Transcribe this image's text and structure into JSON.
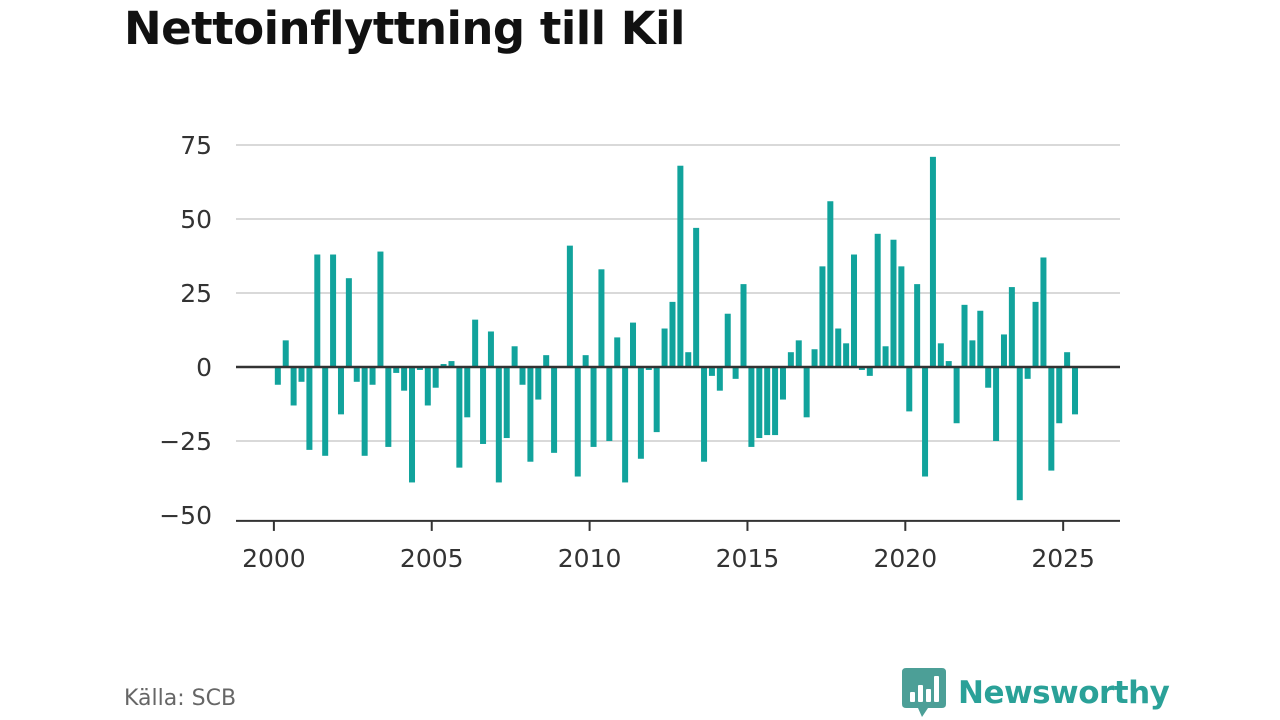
{
  "chart_data": {
    "type": "bar",
    "title": "Nettoinflyttning till Kil",
    "xlabel": "",
    "ylabel": "",
    "x_range": [
      1998.8,
      2026.8
    ],
    "ylim": [
      -52,
      80
    ],
    "y_ticks": [
      75,
      50,
      25,
      0,
      -25,
      -50
    ],
    "y_tick_labels": [
      "75",
      "50",
      "25",
      "0",
      "−25",
      "−50"
    ],
    "x_ticks": [
      2000,
      2005,
      2010,
      2015,
      2020,
      2025
    ],
    "x_tick_labels": [
      "2000",
      "2005",
      "2010",
      "2015",
      "2020",
      "2025"
    ],
    "grid": true,
    "legend": "none",
    "bar_color": "#11a39c",
    "series": [
      {
        "x": [
          2000.125,
          2000.375,
          2000.625,
          2000.875,
          2001.125,
          2001.375,
          2001.625,
          2001.875,
          2002.125,
          2002.375,
          2002.625,
          2002.875,
          2003.125,
          2003.375,
          2003.625,
          2003.875,
          2004.125,
          2004.375,
          2004.625,
          2004.875,
          2005.125,
          2005.375,
          2005.625,
          2005.875,
          2006.125,
          2006.375,
          2006.625,
          2006.875,
          2007.125,
          2007.375,
          2007.625,
          2007.875,
          2008.125,
          2008.375,
          2008.625,
          2008.875,
          2009.125,
          2009.375,
          2009.625,
          2009.875,
          2010.125,
          2010.375,
          2010.625,
          2010.875,
          2011.125,
          2011.375,
          2011.625,
          2011.875,
          2012.125,
          2012.375,
          2012.625,
          2012.875,
          2013.125,
          2013.375,
          2013.625,
          2013.875,
          2014.125,
          2014.375,
          2014.625,
          2014.875,
          2015.125,
          2015.375,
          2015.625,
          2015.875,
          2016.125,
          2016.375,
          2016.625,
          2016.875,
          2017.125,
          2017.375,
          2017.625,
          2017.875,
          2018.125,
          2018.375,
          2018.625,
          2018.875,
          2019.125,
          2019.375,
          2019.625,
          2019.875,
          2020.125,
          2020.375,
          2020.625,
          2020.875,
          2021.125,
          2021.375,
          2021.625,
          2021.875,
          2022.125,
          2022.375,
          2022.625,
          2022.875,
          2023.125,
          2023.375,
          2023.625,
          2023.875,
          2024.125,
          2024.375,
          2024.625,
          2024.875,
          2025.125,
          2025.375
        ],
        "values": [
          -6,
          9,
          -13,
          -5,
          -28,
          38,
          -30,
          38,
          -16,
          30,
          -5,
          -30,
          -6,
          39,
          -27,
          -2,
          -8,
          -39,
          -1,
          -13,
          -7,
          1,
          2,
          -34,
          -17,
          16,
          -26,
          12,
          -39,
          -24,
          7,
          -6,
          -32,
          -11,
          4,
          -29,
          0,
          41,
          -37,
          4,
          -27,
          33,
          -25,
          10,
          -39,
          15,
          -31,
          -1,
          -22,
          13,
          22,
          68,
          5,
          47,
          -32,
          -3,
          -8,
          18,
          -4,
          28,
          -27,
          -24,
          -23,
          -23,
          -11,
          5,
          9,
          -17,
          6,
          34,
          56,
          13,
          8,
          38,
          -1,
          -3,
          45,
          7,
          43,
          34,
          -15,
          28,
          -37,
          71,
          8,
          2,
          -19,
          21,
          9,
          19,
          -7,
          -25,
          11,
          27,
          -45,
          -4,
          22,
          37,
          -35,
          -19,
          5,
          -16
        ]
      }
    ]
  },
  "footer": {
    "source": "Källa: SCB",
    "brand": "Newsworthy"
  },
  "colors": {
    "brand": "#2aa198",
    "brand_icon": "#4c9f97"
  }
}
